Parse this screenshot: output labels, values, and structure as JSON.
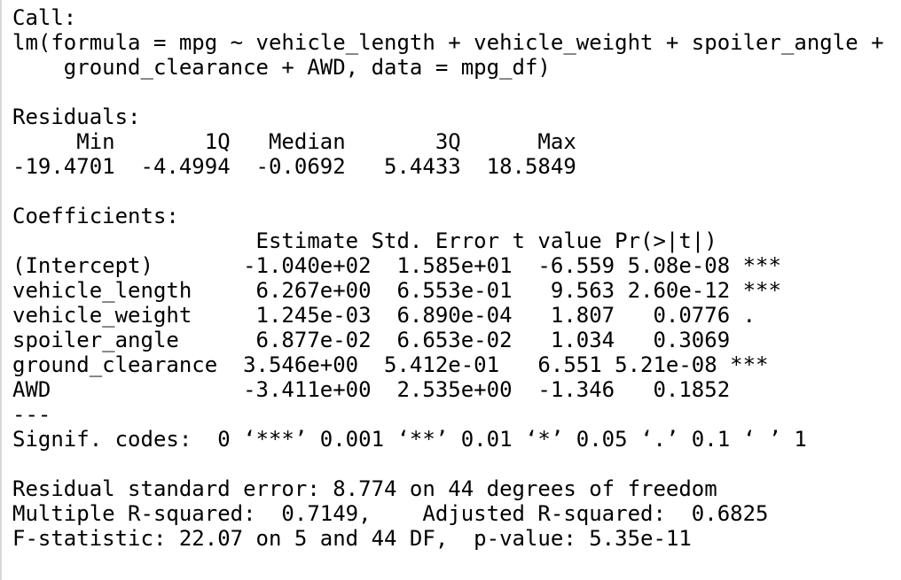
{
  "call": {
    "label": "Call:",
    "formula_line1": "lm(formula = mpg ~ vehicle_length + vehicle_weight + spoiler_angle +",
    "formula_line2": "    ground_clearance + AWD, data = mpg_df)"
  },
  "residuals": {
    "label": "Residuals:",
    "header": "     Min       1Q   Median       3Q      Max ",
    "values": "-19.4701  -4.4994  -0.0692   5.4433  18.5849 "
  },
  "coefficients": {
    "label": "Coefficients:",
    "header": "                   Estimate Std. Error t value Pr(>|t|)    ",
    "rows": [
      "(Intercept)       -1.040e+02  1.585e+01  -6.559 5.08e-08 ***",
      "vehicle_length     6.267e+00  6.553e-01   9.563 2.60e-12 ***",
      "vehicle_weight     1.245e-03  6.890e-04   1.807   0.0776 .  ",
      "spoiler_angle      6.877e-02  6.653e-02   1.034   0.3069    ",
      "ground_clearance  3.546e+00  5.412e-01   6.551 5.21e-08 ***",
      "AWD               -3.411e+00  2.535e+00  -1.346   0.1852    "
    ],
    "separator": "---",
    "signif_codes": "Signif. codes:  0 ‘***’ 0.001 ‘**’ 0.01 ‘*’ 0.05 ‘.’ 0.1 ‘ ’ 1"
  },
  "summary": {
    "residual_se": "Residual standard error: 8.774 on 44 degrees of freedom",
    "r_squared": "Multiple R-squared:  0.7149,\tAdjusted R-squared:  0.6825 ",
    "f_statistic": "F-statistic: 22.07 on 5 and 44 DF,  p-value: 5.35e-11"
  }
}
